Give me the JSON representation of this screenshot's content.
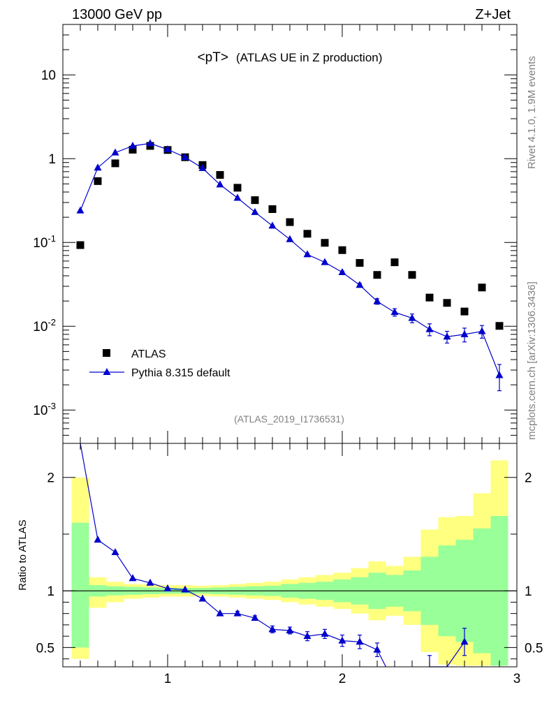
{
  "header": {
    "energy_label": "13000 GeV pp",
    "process_label": "Z+Jet",
    "side_rivet": "Rivet 4.1.0,  1.9M events",
    "side_mcplots": "mcplots.cern.ch [arXiv:1306.3436]"
  },
  "chart_data": [
    {
      "type": "scatter",
      "title": "<pT> (ATLAS UE in Z production)",
      "title_main": "<pT>",
      "title_sub": "(ATLAS UE in Z production)",
      "analysis_label": "(ATLAS_2019_I1736531)",
      "yscale": "log",
      "xlim": [
        0.4,
        3.0
      ],
      "ylim": [
        0.0004,
        40
      ],
      "ytick_labels": [
        {
          "base": "10",
          "exp": "-3",
          "value": 0.001
        },
        {
          "base": "10",
          "exp": "-2",
          "value": 0.01
        },
        {
          "base": "10",
          "exp": "-1",
          "value": 0.1
        },
        {
          "base": "1",
          "exp": "",
          "value": 1
        },
        {
          "base": "10",
          "exp": "",
          "value": 10
        }
      ],
      "legend": {
        "position": "bottom-left",
        "entries": [
          "ATLAS",
          "Pythia 8.315 default"
        ]
      },
      "series": [
        {
          "name": "ATLAS",
          "marker": "square",
          "color": "#000000",
          "x": [
            0.5,
            0.6,
            0.7,
            0.8,
            0.9,
            1.0,
            1.1,
            1.2,
            1.3,
            1.4,
            1.5,
            1.6,
            1.7,
            1.8,
            1.9,
            2.0,
            2.1,
            2.2,
            2.3,
            2.4,
            2.5,
            2.6,
            2.7,
            2.8,
            2.9
          ],
          "y": [
            0.093,
            0.54,
            0.88,
            1.28,
            1.42,
            1.27,
            1.04,
            0.84,
            0.64,
            0.45,
            0.32,
            0.25,
            0.175,
            0.127,
            0.099,
            0.081,
            0.057,
            0.041,
            0.058,
            0.041,
            0.022,
            0.019,
            0.015,
            0.029,
            0.0101
          ]
        },
        {
          "name": "Pythia 8.315 default",
          "marker": "triangle",
          "color": "#0000cc",
          "x": [
            0.5,
            0.6,
            0.7,
            0.8,
            0.9,
            1.0,
            1.1,
            1.2,
            1.3,
            1.4,
            1.5,
            1.6,
            1.7,
            1.8,
            1.9,
            2.0,
            2.1,
            2.2,
            2.3,
            2.4,
            2.5,
            2.6,
            2.7,
            2.8,
            2.9
          ],
          "y": [
            0.24,
            0.78,
            1.18,
            1.42,
            1.52,
            1.29,
            1.04,
            0.77,
            0.49,
            0.34,
            0.23,
            0.158,
            0.109,
            0.072,
            0.058,
            0.044,
            0.031,
            0.0198,
            0.0147,
            0.0125,
            0.0092,
            0.0075,
            0.008,
            0.0087,
            0.0026
          ],
          "yerr": [
            0,
            0,
            0,
            0,
            0,
            0,
            0,
            0,
            0,
            0,
            0,
            0,
            0,
            0.002,
            0.0015,
            0.0015,
            0.0015,
            0.0015,
            0.0015,
            0.0015,
            0.0015,
            0.0012,
            0.0015,
            0.0015,
            0.0009
          ]
        }
      ]
    },
    {
      "type": "line",
      "ylabel": "Ratio to ATLAS",
      "xlim": [
        0.4,
        3.0
      ],
      "ylim": [
        0.33,
        2.3
      ],
      "ytick_labels": [
        "0.5",
        "1",
        "2"
      ],
      "ytick_values": [
        0.5,
        1,
        2
      ],
      "xtick_labels": [
        "1",
        "2",
        "3"
      ],
      "xtick_values": [
        1,
        2,
        3
      ],
      "reference_line": 1,
      "bands": {
        "x_edges": [
          0.45,
          0.55,
          0.65,
          0.75,
          0.85,
          0.95,
          1.05,
          1.15,
          1.25,
          1.35,
          1.45,
          1.55,
          1.65,
          1.75,
          1.85,
          1.95,
          2.05,
          2.15,
          2.25,
          2.35,
          2.45,
          2.55,
          2.65,
          2.75,
          2.85,
          2.95
        ],
        "stat": {
          "color": "#99ff99",
          "lo": [
            0.5,
            0.95,
            0.96,
            0.965,
            0.97,
            0.975,
            0.975,
            0.975,
            0.97,
            0.965,
            0.96,
            0.955,
            0.94,
            0.93,
            0.92,
            0.9,
            0.88,
            0.84,
            0.86,
            0.82,
            0.7,
            0.6,
            0.55,
            0.45,
            0.34
          ],
          "hi": [
            1.6,
            1.05,
            1.04,
            1.035,
            1.03,
            1.025,
            1.025,
            1.025,
            1.03,
            1.035,
            1.04,
            1.045,
            1.06,
            1.07,
            1.08,
            1.1,
            1.12,
            1.16,
            1.14,
            1.18,
            1.3,
            1.4,
            1.45,
            1.55,
            1.66
          ]
        },
        "syst": {
          "color": "#ffff80",
          "lo": [
            0.4,
            0.85,
            0.9,
            0.93,
            0.94,
            0.95,
            0.95,
            0.955,
            0.95,
            0.94,
            0.93,
            0.92,
            0.9,
            0.88,
            0.86,
            0.84,
            0.8,
            0.74,
            0.78,
            0.7,
            0.46,
            0.35,
            0.34,
            0.34,
            0.34
          ],
          "hi": [
            2.0,
            1.12,
            1.08,
            1.06,
            1.055,
            1.05,
            1.05,
            1.045,
            1.05,
            1.06,
            1.07,
            1.08,
            1.1,
            1.12,
            1.14,
            1.16,
            1.2,
            1.26,
            1.22,
            1.3,
            1.54,
            1.65,
            1.66,
            1.86,
            2.15
          ]
        }
      },
      "series": [
        {
          "name": "Pythia 8.315 default",
          "color": "#0000cc",
          "x": [
            0.5,
            0.6,
            0.7,
            0.8,
            0.9,
            1.0,
            1.1,
            1.2,
            1.3,
            1.4,
            1.5,
            1.6,
            1.7,
            1.8,
            1.9,
            2.0,
            2.1,
            2.2,
            2.5,
            2.6,
            2.7
          ],
          "y": [
            2.6,
            1.45,
            1.34,
            1.11,
            1.07,
            1.02,
            1.01,
            0.93,
            0.8,
            0.8,
            0.76,
            0.66,
            0.65,
            0.6,
            0.62,
            0.56,
            0.55,
            0.48,
            0.33,
            0.33,
            0.55
          ],
          "yerr": [
            0,
            0,
            0,
            0,
            0,
            0,
            0,
            0,
            0,
            0.02,
            0.02,
            0.03,
            0.03,
            0.04,
            0.04,
            0.05,
            0.06,
            0.06,
            0.1,
            0.0,
            0.12
          ]
        }
      ],
      "offscale_segment": {
        "from_x": 2.2,
        "to_x": 2.25,
        "note": "series continues below range"
      }
    }
  ]
}
